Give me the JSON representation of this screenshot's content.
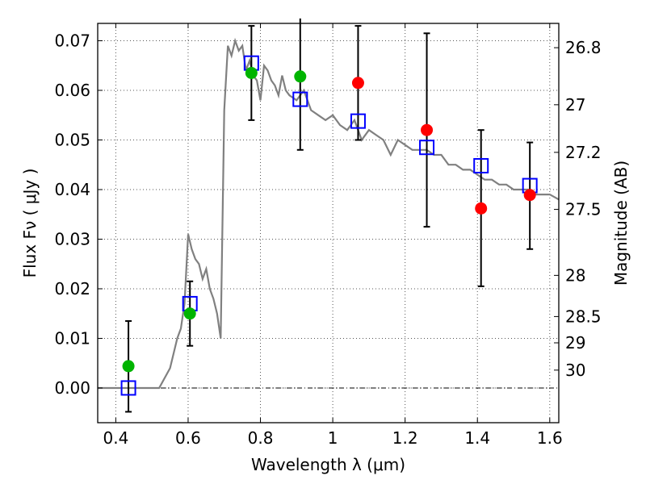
{
  "chart_data": {
    "type": "scatter",
    "xlabel": "Wavelength  λ (μm)",
    "ylabel": "Flux  Fν  ( μJy )",
    "ylabel_right": "Magnitude (AB)",
    "xlim": [
      0.35,
      1.625
    ],
    "ylim": [
      -0.007,
      0.0735
    ],
    "grid": true,
    "x_ticks": [
      0.4,
      0.6,
      0.8,
      1.0,
      1.2,
      1.4,
      1.6
    ],
    "x_tick_labels": [
      "0.4",
      "0.6",
      "0.8",
      "1",
      "1.2",
      "1.4",
      "1.6"
    ],
    "y_ticks": [
      0.0,
      0.01,
      0.02,
      0.03,
      0.04,
      0.05,
      0.06,
      0.07
    ],
    "y_tick_labels": [
      "0.00",
      "0.01",
      "0.02",
      "0.03",
      "0.04",
      "0.05",
      "0.06",
      "0.07"
    ],
    "mag_ticks": [
      {
        "label": "26.8",
        "flux": 0.0686
      },
      {
        "label": "27",
        "flux": 0.0571
      },
      {
        "label": "27.2",
        "flux": 0.0475
      },
      {
        "label": "27.5",
        "flux": 0.036
      },
      {
        "label": "28",
        "flux": 0.0227
      },
      {
        "label": "28.5",
        "flux": 0.0144
      },
      {
        "label": "29",
        "flux": 0.0091
      },
      {
        "label": "30",
        "flux": 0.0036
      }
    ],
    "colors": {
      "sed": "#808080",
      "model": "#0000ff",
      "green": "#00b400",
      "red": "#ff0000",
      "error": "#000000",
      "grid": "#555555"
    },
    "series": [
      {
        "kind": "line",
        "x": [
          0.35,
          0.52,
          0.55,
          0.57,
          0.58,
          0.59,
          0.6,
          0.61,
          0.62,
          0.63,
          0.64,
          0.65,
          0.66,
          0.67,
          0.68,
          0.69,
          0.7,
          0.71,
          0.72,
          0.73,
          0.74,
          0.75,
          0.76,
          0.77,
          0.78,
          0.79,
          0.8,
          0.81,
          0.82,
          0.83,
          0.84,
          0.85,
          0.86,
          0.87,
          0.88,
          0.9,
          0.92,
          0.94,
          0.96,
          0.98,
          1.0,
          1.02,
          1.04,
          1.06,
          1.08,
          1.1,
          1.12,
          1.14,
          1.16,
          1.18,
          1.2,
          1.22,
          1.24,
          1.26,
          1.28,
          1.3,
          1.32,
          1.34,
          1.36,
          1.38,
          1.4,
          1.42,
          1.44,
          1.46,
          1.48,
          1.5,
          1.52,
          1.54,
          1.56,
          1.58,
          1.6,
          1.625
        ],
        "y": [
          0.0,
          0.0,
          0.004,
          0.01,
          0.012,
          0.017,
          0.031,
          0.028,
          0.026,
          0.025,
          0.022,
          0.024,
          0.02,
          0.018,
          0.015,
          0.01,
          0.056,
          0.069,
          0.067,
          0.07,
          0.068,
          0.069,
          0.064,
          0.066,
          0.063,
          0.062,
          0.058,
          0.065,
          0.064,
          0.062,
          0.061,
          0.059,
          0.063,
          0.06,
          0.059,
          0.058,
          0.06,
          0.056,
          0.055,
          0.054,
          0.055,
          0.053,
          0.052,
          0.054,
          0.05,
          0.052,
          0.051,
          0.05,
          0.047,
          0.05,
          0.049,
          0.048,
          0.048,
          0.048,
          0.047,
          0.047,
          0.045,
          0.045,
          0.044,
          0.044,
          0.043,
          0.042,
          0.042,
          0.041,
          0.041,
          0.04,
          0.04,
          0.04,
          0.039,
          0.039,
          0.039,
          0.038
        ]
      },
      {
        "kind": "model_squares",
        "x": [
          0.435,
          0.605,
          0.775,
          0.91,
          1.07,
          1.26,
          1.41,
          1.545
        ],
        "y": [
          0.0,
          0.017,
          0.0655,
          0.0582,
          0.0538,
          0.0485,
          0.0448,
          0.0408
        ]
      },
      {
        "kind": "observed_green",
        "x": [
          0.435,
          0.605,
          0.775,
          0.91
        ],
        "y": [
          0.0044,
          0.015,
          0.0635,
          0.0628
        ]
      },
      {
        "kind": "observed_red",
        "x": [
          1.07,
          1.26,
          1.41,
          1.545
        ],
        "y": [
          0.0615,
          0.052,
          0.0362,
          0.0389
        ]
      },
      {
        "kind": "errorbars",
        "x": [
          0.435,
          0.605,
          0.775,
          0.91,
          1.07,
          1.26,
          1.41,
          1.545
        ],
        "lo": [
          -0.0048,
          0.0085,
          0.054,
          0.048,
          0.05,
          0.0325,
          0.0205,
          0.028
        ],
        "hi": [
          0.0135,
          0.0215,
          0.073,
          0.0745,
          0.073,
          0.0715,
          0.052,
          0.0495
        ]
      }
    ]
  }
}
